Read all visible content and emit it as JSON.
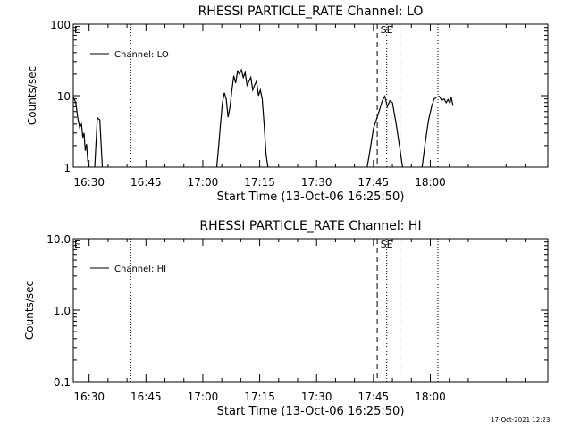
{
  "footer_timestamp": "17-Oct-2021 12:23",
  "chart_data": [
    {
      "type": "line",
      "title": "RHESSI PARTICLE_RATE Channel: LO",
      "xlabel": "Start Time (13-Oct-06 16:25:50)",
      "ylabel": "Counts/sec",
      "x_tick_labels": [
        "16:30",
        "16:45",
        "17:00",
        "17:15",
        "17:30",
        "17:45",
        "18:00"
      ],
      "y_tick_labels": [
        "1",
        "10",
        "100"
      ],
      "y_scale": "log",
      "ylim": [
        1,
        100
      ],
      "xlim": [
        "16:25:50",
        "18:31:00"
      ],
      "grid": false,
      "legend": {
        "position": "top-left",
        "entries": [
          "Channel: LO"
        ]
      },
      "marker_labels": {
        "start": "S",
        "end": "E",
        "left_edge": "E"
      },
      "dotted_markers": [
        "16:41:00",
        "17:48:30",
        "18:02:00"
      ],
      "dashed_markers": [
        "17:46:00",
        "17:52:00"
      ],
      "series": [
        {
          "name": "Channel: LO",
          "segments": [
            [
              [
                "16:25:50",
                9.6
              ],
              [
                "16:26:30",
                8.0
              ],
              [
                "16:27:00",
                5.0
              ],
              [
                "16:27:30",
                3.6
              ],
              [
                "16:28:00",
                4.0
              ],
              [
                "16:28:20",
                2.6
              ],
              [
                "16:28:40",
                3.0
              ],
              [
                "16:29:00",
                1.7
              ],
              [
                "16:29:20",
                2.1
              ],
              [
                "16:29:40",
                1.2
              ],
              [
                "16:30:00",
                1.0
              ]
            ],
            [
              [
                "16:31:30",
                1.0
              ],
              [
                "16:32:10",
                4.9
              ],
              [
                "16:32:50",
                4.6
              ],
              [
                "16:33:30",
                1.0
              ]
            ],
            [
              [
                "17:03:40",
                1.0
              ],
              [
                "17:04:10",
                1.9
              ],
              [
                "17:04:40",
                4.0
              ],
              [
                "17:05:10",
                8.0
              ],
              [
                "17:05:40",
                11.0
              ],
              [
                "17:06:10",
                9.0
              ],
              [
                "17:06:40",
                5.0
              ],
              [
                "17:07:10",
                7.0
              ],
              [
                "17:07:40",
                12.0
              ],
              [
                "17:08:10",
                19.0
              ],
              [
                "17:08:40",
                15.0
              ],
              [
                "17:09:10",
                22.0
              ],
              [
                "17:09:40",
                20.0
              ],
              [
                "17:10:10",
                23.0
              ],
              [
                "17:10:40",
                18.0
              ],
              [
                "17:11:10",
                21.0
              ],
              [
                "17:11:40",
                14.0
              ],
              [
                "17:12:10",
                16.0
              ],
              [
                "17:12:40",
                18.0
              ],
              [
                "17:13:10",
                12.0
              ],
              [
                "17:13:40",
                14.0
              ],
              [
                "17:14:10",
                16.0
              ],
              [
                "17:14:40",
                10.0
              ],
              [
                "17:15:10",
                12.0
              ],
              [
                "17:15:40",
                9.0
              ],
              [
                "17:16:10",
                4.0
              ],
              [
                "17:16:40",
                1.5
              ],
              [
                "17:17:10",
                1.0
              ]
            ],
            [
              [
                "17:43:20",
                1.0
              ],
              [
                "17:44:10",
                1.8
              ],
              [
                "17:45:00",
                3.5
              ],
              [
                "17:46:00",
                5.0
              ],
              [
                "17:46:40",
                6.5
              ],
              [
                "17:47:20",
                8.5
              ],
              [
                "17:48:00",
                9.8
              ],
              [
                "17:48:40",
                7.0
              ],
              [
                "17:49:20",
                8.5
              ],
              [
                "17:50:00",
                8.0
              ],
              [
                "17:51:00",
                4.0
              ],
              [
                "17:52:00",
                1.8
              ],
              [
                "17:52:40",
                1.0
              ]
            ],
            [
              [
                "17:57:50",
                1.0
              ],
              [
                "17:58:40",
                2.2
              ],
              [
                "17:59:30",
                4.5
              ],
              [
                "18:00:20",
                7.0
              ],
              [
                "18:01:00",
                9.0
              ],
              [
                "18:01:40",
                9.5
              ],
              [
                "18:02:20",
                9.8
              ],
              [
                "18:03:00",
                8.6
              ],
              [
                "18:03:40",
                9.0
              ],
              [
                "18:04:10",
                8.0
              ],
              [
                "18:04:40",
                8.8
              ],
              [
                "18:05:10",
                7.8
              ],
              [
                "18:05:30",
                9.5
              ],
              [
                "18:06:00",
                7.2
              ]
            ]
          ]
        }
      ]
    },
    {
      "type": "line",
      "title": "RHESSI PARTICLE_RATE Channel: HI",
      "xlabel": "Start Time (13-Oct-06 16:25:50)",
      "ylabel": "Counts/sec",
      "x_tick_labels": [
        "16:30",
        "16:45",
        "17:00",
        "17:15",
        "17:30",
        "17:45",
        "18:00"
      ],
      "y_tick_labels": [
        "0.1",
        "1.0",
        "10.0"
      ],
      "y_scale": "log",
      "ylim": [
        0.1,
        10
      ],
      "xlim": [
        "16:25:50",
        "18:31:00"
      ],
      "grid": false,
      "legend": {
        "position": "top-left",
        "entries": [
          "Channel: HI"
        ]
      },
      "marker_labels": {
        "start": "S",
        "end": "E",
        "left_edge": "E"
      },
      "dotted_markers": [
        "16:41:00",
        "17:48:30",
        "18:02:00"
      ],
      "dashed_markers": [
        "17:46:00",
        "17:52:00"
      ],
      "series": [
        {
          "name": "Channel: HI",
          "segments": []
        }
      ]
    }
  ]
}
